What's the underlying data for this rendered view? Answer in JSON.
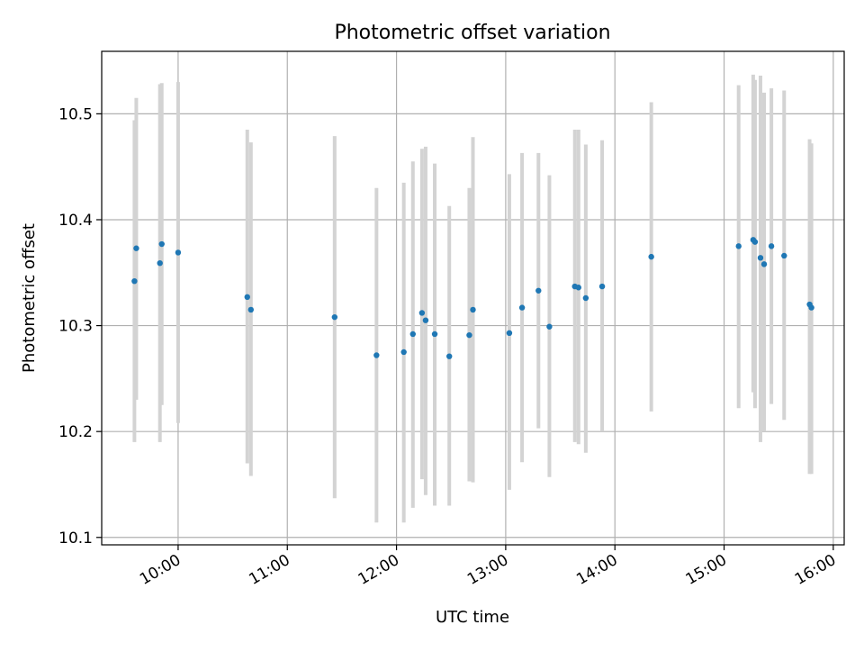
{
  "chart_data": {
    "type": "scatter",
    "title": "Photometric offset variation",
    "xlabel": "UTC time",
    "ylabel": "Photometric offset",
    "x_ticks": [
      "10:00",
      "11:00",
      "12:00",
      "13:00",
      "14:00",
      "15:00",
      "16:00"
    ],
    "y_ticks": [
      "10.1",
      "10.2",
      "10.3",
      "10.4",
      "10.5"
    ],
    "xlim": [
      "09:18",
      "16:06"
    ],
    "ylim": [
      10.093,
      10.559
    ],
    "grid": true,
    "legend": "none",
    "colors": {
      "point": "#1f77b4",
      "errorbar": "#d3d3d3",
      "grid": "#b0b0b0"
    },
    "series": [
      {
        "x": [
          "09:36",
          "09:37",
          "09:50",
          "09:51",
          "10:00",
          "10:38",
          "10:40",
          "11:26",
          "11:49",
          "12:04",
          "12:09",
          "12:14",
          "12:16",
          "12:21",
          "12:29",
          "12:40",
          "12:42",
          "13:02",
          "13:09",
          "13:18",
          "13:24",
          "13:38",
          "13:40",
          "13:44",
          "13:53",
          "14:20",
          "15:08",
          "15:16",
          "15:17",
          "15:20",
          "15:22",
          "15:26",
          "15:33",
          "15:47",
          "15:48"
        ],
        "y": [
          10.342,
          10.373,
          10.359,
          10.377,
          10.369,
          10.327,
          10.315,
          10.308,
          10.272,
          10.275,
          10.292,
          10.312,
          10.305,
          10.292,
          10.271,
          10.291,
          10.315,
          10.293,
          10.317,
          10.333,
          10.299,
          10.337,
          10.336,
          10.326,
          10.337,
          10.365,
          10.375,
          10.381,
          10.379,
          10.364,
          10.358,
          10.375,
          10.366,
          10.32,
          10.317
        ],
        "err_low": [
          10.19,
          10.23,
          10.19,
          10.225,
          10.208,
          10.17,
          10.158,
          10.137,
          10.114,
          10.114,
          10.128,
          10.155,
          10.14,
          10.13,
          10.13,
          10.153,
          10.152,
          10.145,
          10.171,
          10.203,
          10.157,
          10.19,
          10.188,
          10.18,
          10.2,
          10.219,
          10.222,
          10.237,
          10.222,
          10.19,
          10.2,
          10.226,
          10.211,
          10.16,
          10.16
        ],
        "err_high": [
          10.494,
          10.515,
          10.528,
          10.529,
          10.53,
          10.485,
          10.473,
          10.479,
          10.43,
          10.435,
          10.455,
          10.467,
          10.469,
          10.453,
          10.413,
          10.43,
          10.478,
          10.443,
          10.463,
          10.463,
          10.442,
          10.485,
          10.485,
          10.471,
          10.475,
          10.511,
          10.527,
          10.537,
          10.532,
          10.536,
          10.52,
          10.524,
          10.522,
          10.476,
          10.472
        ]
      }
    ]
  }
}
